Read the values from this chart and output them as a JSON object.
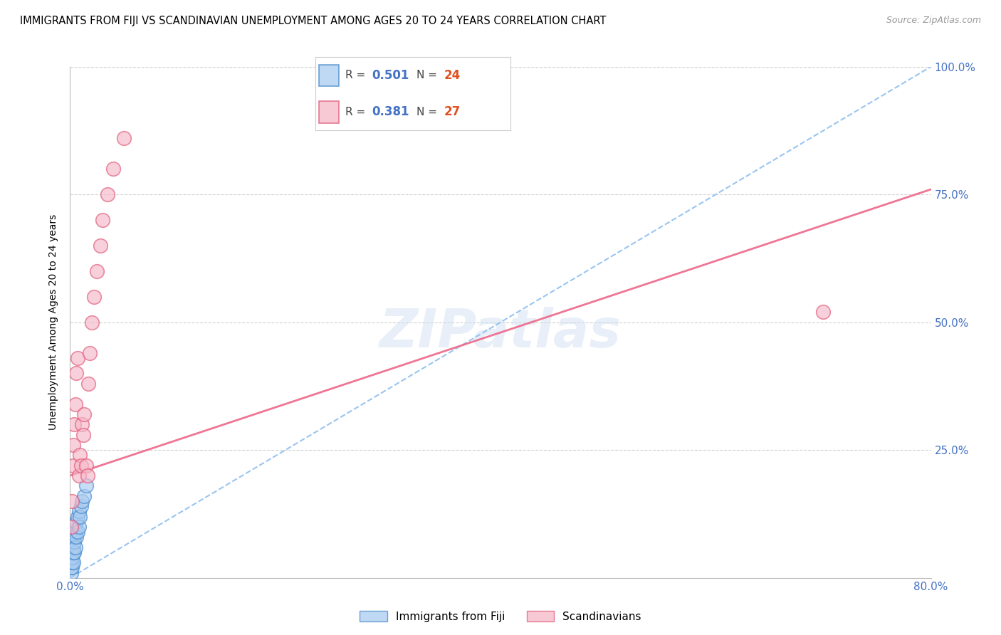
{
  "title": "IMMIGRANTS FROM FIJI VS SCANDINAVIAN UNEMPLOYMENT AMONG AGES 20 TO 24 YEARS CORRELATION CHART",
  "source": "Source: ZipAtlas.com",
  "ylabel": "Unemployment Among Ages 20 to 24 years",
  "xlim": [
    0,
    0.8
  ],
  "ylim": [
    0,
    1.0
  ],
  "xtick_positions": [
    0.0,
    0.1,
    0.2,
    0.3,
    0.4,
    0.5,
    0.6,
    0.7,
    0.8
  ],
  "xtick_labels": [
    "0.0%",
    "",
    "",
    "",
    "",
    "",
    "",
    "",
    "80.0%"
  ],
  "ytick_positions": [
    0.0,
    0.25,
    0.5,
    0.75,
    1.0
  ],
  "ytick_labels_right": [
    "",
    "25.0%",
    "50.0%",
    "75.0%",
    "100.0%"
  ],
  "fiji_color": "#aaccf0",
  "scand_color": "#f5b8c8",
  "fiji_edge": "#4488cc",
  "scand_edge": "#e05575",
  "fiji_R": 0.501,
  "fiji_N": 24,
  "scand_R": 0.381,
  "scand_N": 27,
  "fiji_trend_color": "#88bbee",
  "scand_trend_color": "#ee6688",
  "watermark": "ZIPatlas",
  "legend_fiji": "Immigrants from Fiji",
  "legend_scand": "Scandinavians",
  "tick_color": "#4472c4",
  "grid_color": "#cccccc",
  "fiji_x": [
    0.001,
    0.001,
    0.002,
    0.002,
    0.002,
    0.003,
    0.003,
    0.003,
    0.004,
    0.004,
    0.004,
    0.005,
    0.005,
    0.006,
    0.006,
    0.007,
    0.007,
    0.008,
    0.008,
    0.009,
    0.01,
    0.011,
    0.013,
    0.015
  ],
  "fiji_y": [
    0.01,
    0.02,
    0.02,
    0.03,
    0.04,
    0.03,
    0.05,
    0.06,
    0.05,
    0.07,
    0.08,
    0.06,
    0.09,
    0.08,
    0.11,
    0.09,
    0.12,
    0.1,
    0.13,
    0.12,
    0.14,
    0.15,
    0.16,
    0.18
  ],
  "scand_x": [
    0.001,
    0.002,
    0.003,
    0.003,
    0.004,
    0.005,
    0.006,
    0.007,
    0.008,
    0.009,
    0.01,
    0.011,
    0.012,
    0.013,
    0.015,
    0.016,
    0.017,
    0.018,
    0.02,
    0.022,
    0.025,
    0.028,
    0.03,
    0.035,
    0.04,
    0.05,
    0.7
  ],
  "scand_y": [
    0.1,
    0.15,
    0.22,
    0.26,
    0.3,
    0.34,
    0.4,
    0.43,
    0.2,
    0.24,
    0.22,
    0.3,
    0.28,
    0.32,
    0.22,
    0.2,
    0.38,
    0.44,
    0.5,
    0.55,
    0.6,
    0.65,
    0.7,
    0.75,
    0.8,
    0.86,
    0.52
  ],
  "scand_intercept": 0.2,
  "scand_slope": 0.7,
  "fiji_intercept": 0.0,
  "fiji_slope": 1.25
}
